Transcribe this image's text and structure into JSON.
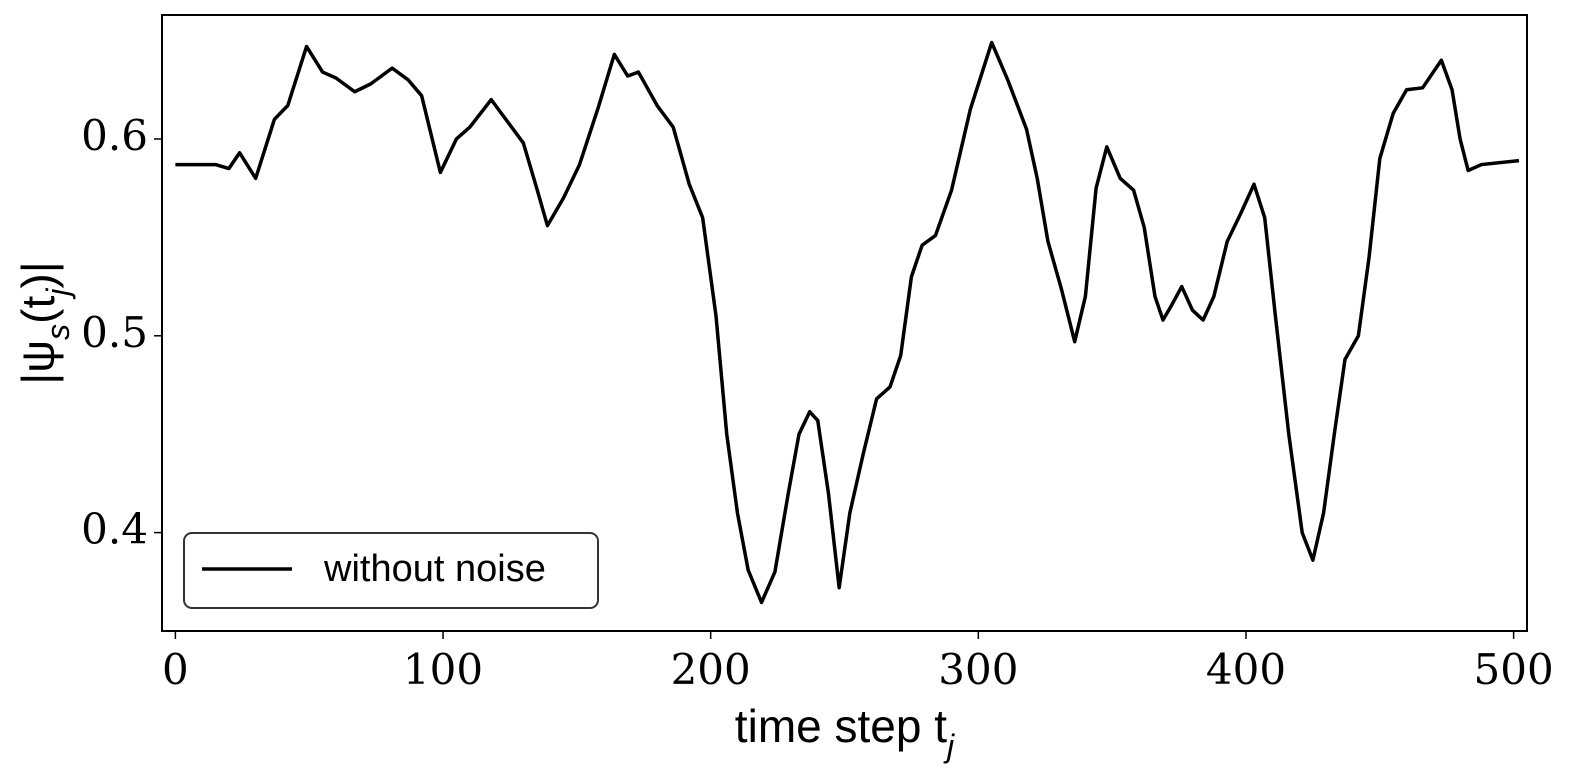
{
  "chart_data": {
    "type": "line",
    "xlabel": "time step t_j",
    "ylabel": "|ψ_s(t_j)|",
    "xlim": [
      -5,
      505
    ],
    "ylim": [
      0.35,
      0.663
    ],
    "xticks": [
      0,
      100,
      200,
      300,
      400,
      500
    ],
    "yticks": [
      0.4,
      0.5,
      0.6
    ],
    "legend": "lower left",
    "x": [
      0,
      15,
      20,
      24,
      30,
      37,
      42,
      49,
      55,
      60,
      67,
      73,
      81,
      87,
      92,
      99,
      105,
      110,
      118,
      124,
      130,
      135,
      139,
      145,
      151,
      158,
      164,
      169,
      173,
      180,
      186,
      192,
      197,
      202,
      206,
      210,
      214,
      219,
      224,
      229,
      233,
      237,
      240,
      244,
      248,
      252,
      257,
      262,
      267,
      271,
      275,
      279,
      284,
      290,
      297,
      305,
      311,
      318,
      322,
      326,
      331,
      336,
      340,
      344,
      348,
      353,
      358,
      362,
      366,
      369,
      372,
      376,
      380,
      384,
      388,
      393,
      398,
      403,
      407,
      411,
      416,
      421,
      425,
      429,
      433,
      437,
      442,
      446,
      450,
      455,
      460,
      466,
      473,
      477,
      480,
      483,
      488,
      502
    ],
    "series": [
      {
        "name": "without noise",
        "color": "#000000",
        "values": [
          0.587,
          0.587,
          0.585,
          0.593,
          0.58,
          0.61,
          0.617,
          0.647,
          0.634,
          0.631,
          0.624,
          0.628,
          0.636,
          0.63,
          0.622,
          0.583,
          0.6,
          0.606,
          0.62,
          0.609,
          0.598,
          0.575,
          0.556,
          0.57,
          0.587,
          0.616,
          0.643,
          0.632,
          0.634,
          0.617,
          0.606,
          0.577,
          0.56,
          0.51,
          0.45,
          0.41,
          0.381,
          0.3645,
          0.38,
          0.42,
          0.45,
          0.4614,
          0.457,
          0.42,
          0.372,
          0.41,
          0.44,
          0.468,
          0.474,
          0.49,
          0.53,
          0.546,
          0.551,
          0.574,
          0.615,
          0.649,
          0.63,
          0.605,
          0.58,
          0.548,
          0.524,
          0.497,
          0.52,
          0.575,
          0.596,
          0.58,
          0.574,
          0.555,
          0.52,
          0.508,
          0.515,
          0.525,
          0.513,
          0.508,
          0.52,
          0.548,
          0.562,
          0.577,
          0.56,
          0.51,
          0.45,
          0.4,
          0.386,
          0.41,
          0.45,
          0.488,
          0.5,
          0.54,
          0.59,
          0.613,
          0.625,
          0.626,
          0.64,
          0.625,
          0.6,
          0.584,
          0.587,
          0.589
        ]
      }
    ]
  }
}
